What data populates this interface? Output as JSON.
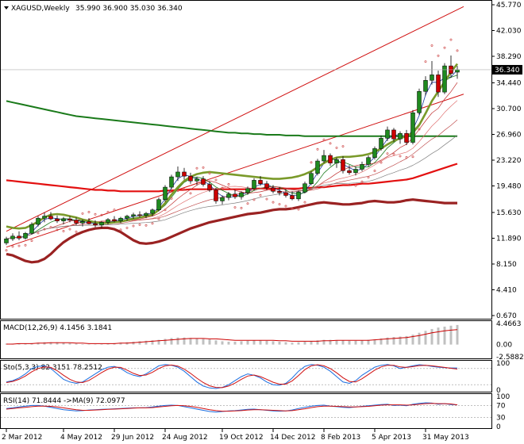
{
  "header": {
    "symbol": "XAGUSD,Weekly",
    "ohlc": "35.990 36.900 35.030 36.340"
  },
  "panels": {
    "macd_label": "MACD(12,26,9) 4.1456 3.1841",
    "sto_label": "Sto(5,3,3) 82.3151 78.2512",
    "rsi_label": "RSI(14) 71.8444 ->MA(9) 72.0977"
  },
  "colors": {
    "bull": "#1f8a1f",
    "bear": "#cc0000",
    "ma_green_dark": "#1a7a1a",
    "ma_red": "#e31010",
    "ma_darkred": "#9a2222",
    "ma_olive": "#7a9a2a",
    "channel": "#d01010",
    "sar": "#d05050",
    "price_tag": "#000000",
    "signal_macd": "#cc0000",
    "sto_main": "#1a6ee0",
    "sto_signal": "#d01010",
    "rsi_main": "#1a6ee0",
    "rsi_ma": "#d01010"
  },
  "chart_data": {
    "type": "line",
    "title": "XAGUSD,Weekly",
    "y_scale": {
      "ticks": [
        "45.770",
        "42.030",
        "38.290",
        "34.440",
        "30.700",
        "26.960",
        "23.220",
        "19.480",
        "15.630",
        "11.890",
        "8.150",
        "4.410",
        "0.670"
      ],
      "current_price": "36.340",
      "range": [
        0.67,
        45.77
      ]
    },
    "x_labels": [
      "2 Mar 2012",
      "4 May 2012",
      "29 Jun 2012",
      "24 Aug 2012",
      "19 Oct 2012",
      "14 Dec 2012",
      "8 Feb 2013",
      "5 Apr 2013",
      "31 May 2013"
    ],
    "candles": [
      [
        11.2,
        12.1,
        10.9,
        11.8
      ],
      [
        11.8,
        12.6,
        11.5,
        12.2
      ],
      [
        12.2,
        12.9,
        11.6,
        11.9
      ],
      [
        11.9,
        12.8,
        11.7,
        12.6
      ],
      [
        12.6,
        14.2,
        12.4,
        13.9
      ],
      [
        13.9,
        15.1,
        13.6,
        14.8
      ],
      [
        14.8,
        15.6,
        14.2,
        15.1
      ],
      [
        15.1,
        15.7,
        14.5,
        14.7
      ],
      [
        14.7,
        15.2,
        14.1,
        14.4
      ],
      [
        14.4,
        15.0,
        13.9,
        14.7
      ],
      [
        14.7,
        15.1,
        14.2,
        14.5
      ],
      [
        14.5,
        14.9,
        13.8,
        14.1
      ],
      [
        14.1,
        14.6,
        13.6,
        14.3
      ],
      [
        14.3,
        14.8,
        13.9,
        14.0
      ],
      [
        14.0,
        14.5,
        13.5,
        13.8
      ],
      [
        13.8,
        14.4,
        13.4,
        14.2
      ],
      [
        14.2,
        14.8,
        13.9,
        14.6
      ],
      [
        14.6,
        15.1,
        14.2,
        14.4
      ],
      [
        14.4,
        15.0,
        14.1,
        14.8
      ],
      [
        14.8,
        15.3,
        14.4,
        15.1
      ],
      [
        15.1,
        15.6,
        14.7,
        15.3
      ],
      [
        15.3,
        15.8,
        14.9,
        15.2
      ],
      [
        15.2,
        15.7,
        14.8,
        15.5
      ],
      [
        15.5,
        16.2,
        15.1,
        16.0
      ],
      [
        16.0,
        17.8,
        15.8,
        17.5
      ],
      [
        17.5,
        19.6,
        17.2,
        19.3
      ],
      [
        19.3,
        21.1,
        19.0,
        20.8
      ],
      [
        20.8,
        22.3,
        20.2,
        21.5
      ],
      [
        21.5,
        22.1,
        20.4,
        20.9
      ],
      [
        20.9,
        21.4,
        19.8,
        20.2
      ],
      [
        20.2,
        20.8,
        19.6,
        20.5
      ],
      [
        20.5,
        20.9,
        19.4,
        19.7
      ],
      [
        19.7,
        20.1,
        18.6,
        18.9
      ],
      [
        18.9,
        19.2,
        16.9,
        17.3
      ],
      [
        17.3,
        18.1,
        16.8,
        17.8
      ],
      [
        17.8,
        18.6,
        17.4,
        18.3
      ],
      [
        18.3,
        18.9,
        17.6,
        17.9
      ],
      [
        17.9,
        18.7,
        17.5,
        18.5
      ],
      [
        18.5,
        19.4,
        18.2,
        19.1
      ],
      [
        19.1,
        20.6,
        18.8,
        20.3
      ],
      [
        20.3,
        20.9,
        19.5,
        19.8
      ],
      [
        19.8,
        20.2,
        18.9,
        19.2
      ],
      [
        19.2,
        19.6,
        18.4,
        18.7
      ],
      [
        18.7,
        19.3,
        18.1,
        18.5
      ],
      [
        18.5,
        19.0,
        17.8,
        18.1
      ],
      [
        18.1,
        18.7,
        17.4,
        17.6
      ],
      [
        17.6,
        18.8,
        17.3,
        18.6
      ],
      [
        18.6,
        20.1,
        18.4,
        19.8
      ],
      [
        19.8,
        21.6,
        19.6,
        21.3
      ],
      [
        21.3,
        23.4,
        21.0,
        23.1
      ],
      [
        23.1,
        24.7,
        22.8,
        23.9
      ],
      [
        23.9,
        24.2,
        22.4,
        22.8
      ],
      [
        22.8,
        23.6,
        22.1,
        23.3
      ],
      [
        23.3,
        23.8,
        21.3,
        21.7
      ],
      [
        21.7,
        22.5,
        21.1,
        21.4
      ],
      [
        21.4,
        22.3,
        21.0,
        21.9
      ],
      [
        21.9,
        23.0,
        21.6,
        22.6
      ],
      [
        22.6,
        23.9,
        22.3,
        23.6
      ],
      [
        23.6,
        25.2,
        23.3,
        24.9
      ],
      [
        24.9,
        26.8,
        24.6,
        26.4
      ],
      [
        26.4,
        28.1,
        26.0,
        27.6
      ],
      [
        27.6,
        27.9,
        25.9,
        26.3
      ],
      [
        26.3,
        27.4,
        25.6,
        27.1
      ],
      [
        27.1,
        27.6,
        25.4,
        25.8
      ],
      [
        25.8,
        30.5,
        25.5,
        30.1
      ],
      [
        30.1,
        33.6,
        29.8,
        33.2
      ],
      [
        33.2,
        35.4,
        32.6,
        34.8
      ],
      [
        34.8,
        37.6,
        34.2,
        35.6
      ],
      [
        35.6,
        36.2,
        32.4,
        33.1
      ],
      [
        33.1,
        37.3,
        32.8,
        36.9
      ],
      [
        36.9,
        38.4,
        35.2,
        35.8
      ],
      [
        35.99,
        36.9,
        35.03,
        36.34
      ]
    ],
    "ma_olive_fast": [
      13.6,
      13.4,
      13.3,
      13.4,
      13.8,
      14.3,
      14.9,
      15.3,
      15.4,
      15.3,
      15.1,
      14.9,
      14.6,
      14.4,
      14.2,
      14.1,
      14.1,
      14.2,
      14.3,
      14.5,
      14.7,
      14.9,
      15.1,
      15.3,
      16.0,
      17.0,
      18.2,
      19.3,
      20.2,
      20.8,
      21.2,
      21.4,
      21.5,
      21.4,
      21.3,
      21.2,
      21.1,
      21.0,
      20.9,
      20.8,
      20.7,
      20.6,
      20.5,
      20.5,
      20.6,
      20.7,
      20.9,
      21.2,
      21.6,
      22.2,
      22.8,
      23.3,
      23.6,
      23.7,
      23.7,
      23.8,
      23.9,
      24.1,
      24.4,
      24.9,
      25.5,
      26.0,
      26.4,
      26.7,
      27.2,
      28.3,
      30.0,
      31.8,
      33.2,
      34.6,
      36.0,
      37.2
    ],
    "ma_red_long": [
      20.3,
      20.2,
      20.1,
      20.0,
      19.9,
      19.8,
      19.7,
      19.6,
      19.5,
      19.4,
      19.3,
      19.2,
      19.1,
      19.0,
      18.9,
      18.9,
      18.8,
      18.8,
      18.7,
      18.7,
      18.7,
      18.7,
      18.7,
      18.7,
      18.7,
      18.8,
      18.8,
      18.9,
      18.9,
      19.0,
      19.0,
      19.0,
      19.0,
      19.0,
      19.0,
      19.0,
      19.0,
      19.0,
      19.0,
      19.1,
      19.1,
      19.1,
      19.1,
      19.1,
      19.1,
      19.1,
      19.1,
      19.2,
      19.2,
      19.3,
      19.3,
      19.4,
      19.5,
      19.6,
      19.6,
      19.7,
      19.8,
      19.8,
      19.9,
      20.0,
      20.1,
      20.2,
      20.3,
      20.4,
      20.6,
      20.9,
      21.2,
      21.5,
      21.8,
      22.1,
      22.4,
      22.7
    ],
    "ma_green_200": [
      31.8,
      31.6,
      31.4,
      31.2,
      31.0,
      30.8,
      30.6,
      30.4,
      30.2,
      30.0,
      29.8,
      29.6,
      29.5,
      29.4,
      29.3,
      29.2,
      29.1,
      29.0,
      28.9,
      28.8,
      28.7,
      28.6,
      28.5,
      28.4,
      28.3,
      28.2,
      28.1,
      28.0,
      27.9,
      27.8,
      27.7,
      27.6,
      27.5,
      27.4,
      27.3,
      27.2,
      27.2,
      27.1,
      27.1,
      27.0,
      27.0,
      26.9,
      26.9,
      26.9,
      26.8,
      26.8,
      26.8,
      26.7,
      26.7,
      26.7,
      26.7,
      26.7,
      26.7,
      26.7,
      26.7,
      26.7,
      26.7,
      26.7,
      26.7,
      26.7,
      26.7,
      26.7,
      26.7,
      26.7,
      26.7,
      26.7,
      26.7,
      26.7,
      26.7,
      26.7,
      26.7,
      26.7
    ],
    "ma_darkred_lagging": [
      9.6,
      9.4,
      9.0,
      8.6,
      8.4,
      8.5,
      8.9,
      9.6,
      10.5,
      11.3,
      11.9,
      12.4,
      12.8,
      13.1,
      13.3,
      13.4,
      13.4,
      13.2,
      12.8,
      12.2,
      11.6,
      11.2,
      11.1,
      11.2,
      11.4,
      11.7,
      12.1,
      12.5,
      12.9,
      13.3,
      13.6,
      13.9,
      14.2,
      14.4,
      14.6,
      14.8,
      15.0,
      15.2,
      15.4,
      15.5,
      15.6,
      15.8,
      16.0,
      16.1,
      16.1,
      16.2,
      16.4,
      16.6,
      16.8,
      17.0,
      17.1,
      17.0,
      16.9,
      16.8,
      16.8,
      16.9,
      17.0,
      17.2,
      17.3,
      17.2,
      17.1,
      17.1,
      17.2,
      17.4,
      17.5,
      17.4,
      17.3,
      17.2,
      17.1,
      17.0,
      17.0,
      17.0
    ],
    "channel_upper": {
      "from": [
        0,
        12.9
      ],
      "to": [
        71,
        44.3
      ]
    },
    "channel_lower": {
      "from": [
        0,
        10.6
      ],
      "to": [
        71,
        31.6
      ]
    },
    "macd": {
      "ticks": [
        "4.4663",
        "0.00",
        "-2.5882"
      ],
      "histogram": [
        0.2,
        0.2,
        0.2,
        0.2,
        0.3,
        0.4,
        0.5,
        0.5,
        0.5,
        0.4,
        0.3,
        0.2,
        0.1,
        0.0,
        0.0,
        0.1,
        0.2,
        0.3,
        0.4,
        0.5,
        0.6,
        0.7,
        0.8,
        0.9,
        1.0,
        1.2,
        1.4,
        1.5,
        1.5,
        1.4,
        1.3,
        1.2,
        1.1,
        0.9,
        0.7,
        0.6,
        0.6,
        0.7,
        0.8,
        0.9,
        0.9,
        0.8,
        0.7,
        0.6,
        0.5,
        0.4,
        0.5,
        0.6,
        0.7,
        0.9,
        1.0,
        1.0,
        0.9,
        0.9,
        0.8,
        0.8,
        0.9,
        1.0,
        1.1,
        1.3,
        1.5,
        1.6,
        1.7,
        1.8,
        2.1,
        2.5,
        2.9,
        3.3,
        3.6,
        3.8,
        4.0,
        4.15
      ],
      "signal": [
        0.1,
        0.1,
        0.2,
        0.2,
        0.2,
        0.3,
        0.3,
        0.4,
        0.4,
        0.4,
        0.4,
        0.3,
        0.3,
        0.2,
        0.2,
        0.2,
        0.2,
        0.2,
        0.3,
        0.3,
        0.4,
        0.5,
        0.6,
        0.7,
        0.8,
        0.9,
        1.0,
        1.1,
        1.2,
        1.3,
        1.3,
        1.3,
        1.2,
        1.2,
        1.1,
        1.0,
        0.9,
        0.9,
        0.9,
        0.9,
        0.9,
        0.9,
        0.9,
        0.8,
        0.8,
        0.7,
        0.7,
        0.7,
        0.7,
        0.7,
        0.8,
        0.8,
        0.9,
        0.9,
        0.9,
        0.9,
        0.9,
        0.9,
        1.0,
        1.1,
        1.2,
        1.3,
        1.4,
        1.5,
        1.7,
        1.9,
        2.2,
        2.5,
        2.7,
        2.9,
        3.05,
        3.18
      ]
    },
    "stochastic": {
      "ticks": [
        "100",
        "0"
      ],
      "main": [
        30,
        35,
        45,
        60,
        80,
        88,
        90,
        80,
        60,
        40,
        30,
        25,
        30,
        45,
        60,
        75,
        85,
        88,
        80,
        65,
        55,
        50,
        60,
        75,
        90,
        95,
        92,
        85,
        70,
        50,
        30,
        15,
        8,
        6,
        10,
        20,
        35,
        50,
        60,
        55,
        45,
        30,
        20,
        18,
        25,
        45,
        70,
        88,
        95,
        92,
        85,
        70,
        50,
        30,
        25,
        35,
        55,
        70,
        85,
        92,
        95,
        90,
        80,
        85,
        90,
        94,
        92,
        88,
        85,
        83,
        82,
        82
      ],
      "signal": [
        28,
        32,
        40,
        52,
        68,
        80,
        86,
        84,
        72,
        55,
        40,
        30,
        28,
        36,
        50,
        65,
        78,
        85,
        84,
        74,
        62,
        54,
        56,
        66,
        80,
        90,
        93,
        89,
        78,
        62,
        44,
        28,
        16,
        10,
        9,
        15,
        26,
        40,
        52,
        56,
        50,
        40,
        29,
        22,
        22,
        34,
        54,
        76,
        90,
        94,
        90,
        80,
        64,
        46,
        32,
        30,
        42,
        58,
        74,
        86,
        92,
        92,
        86,
        84,
        87,
        91,
        92,
        90,
        87,
        84,
        81,
        78
      ]
    },
    "rsi": {
      "ticks": [
        "100",
        "70",
        "30",
        "0"
      ],
      "main": [
        60,
        62,
        65,
        68,
        70,
        70,
        68,
        64,
        60,
        56,
        54,
        52,
        53,
        55,
        56,
        57,
        58,
        59,
        60,
        61,
        62,
        62,
        63,
        65,
        68,
        70,
        71,
        70,
        66,
        62,
        58,
        54,
        50,
        48,
        50,
        52,
        53,
        55,
        57,
        58,
        56,
        54,
        52,
        51,
        52,
        55,
        60,
        64,
        68,
        70,
        71,
        68,
        66,
        64,
        63,
        65,
        67,
        69,
        71,
        73,
        74,
        70,
        71,
        69,
        74,
        77,
        79,
        78,
        74,
        76,
        73,
        72
      ],
      "ma": [
        58,
        60,
        62,
        64,
        66,
        68,
        68,
        67,
        65,
        62,
        59,
        56,
        54,
        54,
        55,
        56,
        57,
        58,
        59,
        60,
        61,
        62,
        62,
        63,
        65,
        67,
        69,
        70,
        69,
        67,
        64,
        60,
        56,
        53,
        51,
        51,
        52,
        53,
        55,
        56,
        56,
        55,
        54,
        53,
        52,
        53,
        56,
        59,
        63,
        66,
        68,
        68,
        67,
        66,
        65,
        65,
        66,
        67,
        69,
        71,
        72,
        72,
        72,
        71,
        72,
        74,
        76,
        77,
        76,
        76,
        75,
        72.1
      ]
    }
  }
}
